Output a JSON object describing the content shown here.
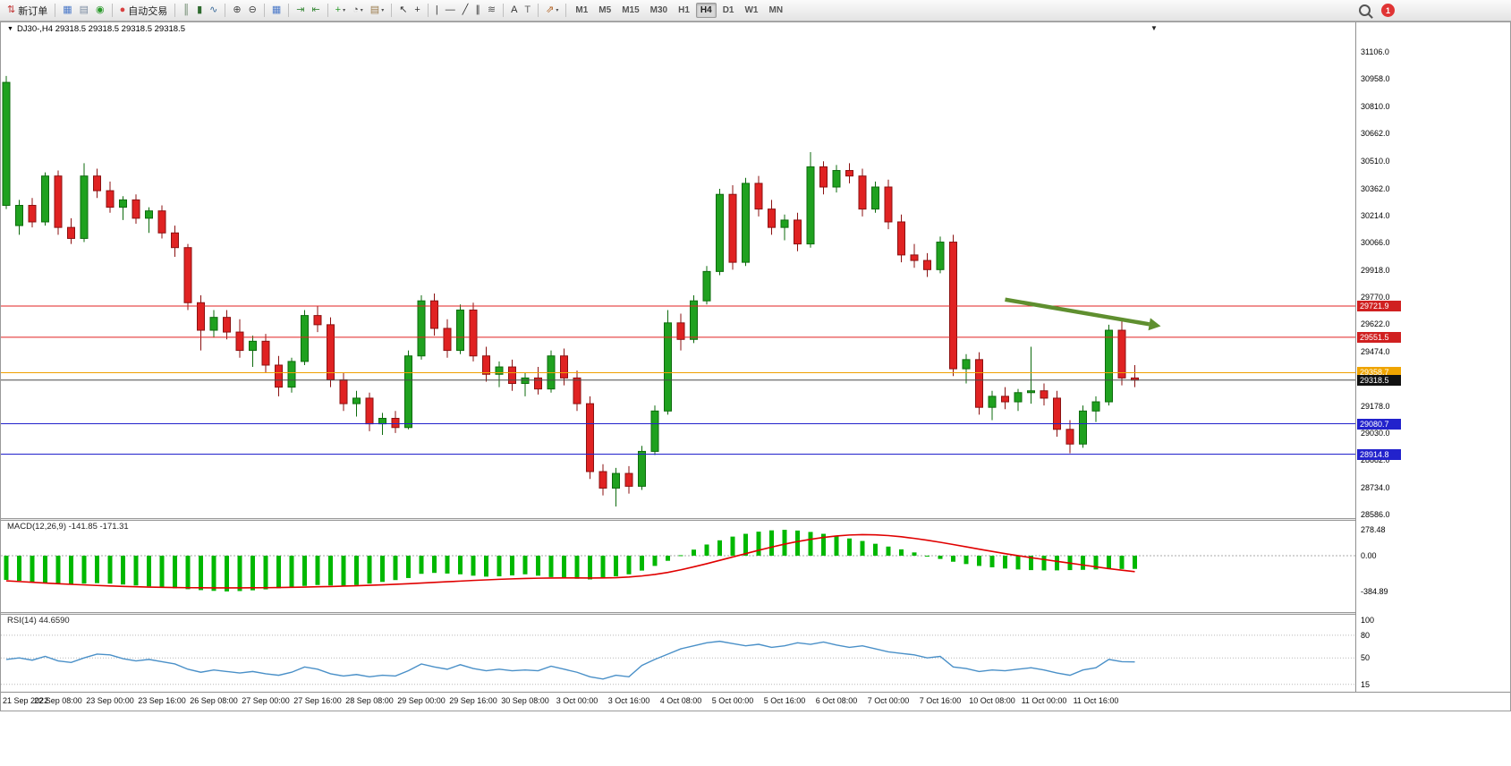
{
  "toolbar": {
    "caret_glyph": "▾",
    "groups": [
      {
        "items": [
          {
            "name": "new-order-button",
            "glyph": "⇅",
            "color": "#c03030",
            "label": "新订单"
          }
        ]
      },
      {
        "items": [
          {
            "name": "new-chart-button",
            "glyph": "▦",
            "color": "#4a78c8"
          },
          {
            "name": "profiles-button",
            "glyph": "▤",
            "color": "#7a8aa0"
          },
          {
            "name": "refresh-button",
            "glyph": "◉",
            "color": "#2a9a2a"
          }
        ]
      },
      {
        "items": [
          {
            "name": "autotrading-button",
            "glyph": "●",
            "color": "#d84040",
            "label": "自动交易"
          }
        ]
      },
      {
        "items": [
          {
            "name": "bar-chart-button",
            "glyph": "║",
            "color": "#5a7a5a"
          },
          {
            "name": "candlestick-chart-button",
            "glyph": "▮",
            "color": "#2f6b2f"
          },
          {
            "name": "line-chart-button",
            "glyph": "∿",
            "color": "#3a6a9a"
          }
        ]
      },
      {
        "items": [
          {
            "name": "zoom-in-button",
            "glyph": "⊕",
            "color": "#444444"
          },
          {
            "name": "zoom-out-button",
            "glyph": "⊖",
            "color": "#444444"
          }
        ]
      },
      {
        "items": [
          {
            "name": "tile-windows-button",
            "glyph": "▦",
            "color": "#4a78c8"
          }
        ]
      },
      {
        "items": [
          {
            "name": "auto-scroll-button",
            "glyph": "⇥",
            "color": "#3a8a3a"
          },
          {
            "name": "chart-shift-button",
            "glyph": "⇤",
            "color": "#3a8a3a"
          }
        ]
      },
      {
        "items": [
          {
            "name": "indicators-button",
            "glyph": "+",
            "color": "#2a9a2a",
            "caret": true
          },
          {
            "name": "periods-button",
            "glyph": "◔",
            "color": "#555555",
            "caret": true
          },
          {
            "name": "templates-button",
            "glyph": "▤",
            "color": "#9a7a4a",
            "caret": true
          }
        ]
      },
      {
        "items": [
          {
            "name": "cursor-button",
            "glyph": "↖",
            "color": "#333333"
          },
          {
            "name": "crosshair-button",
            "glyph": "+",
            "color": "#333333"
          }
        ]
      },
      {
        "items": [
          {
            "name": "vertical-line-button",
            "glyph": "|",
            "color": "#333333"
          },
          {
            "name": "horizontal-line-button",
            "glyph": "—",
            "color": "#333333"
          },
          {
            "name": "trendline-button",
            "glyph": "╱",
            "color": "#333333"
          },
          {
            "name": "channel-button",
            "glyph": "∥",
            "color": "#333333"
          },
          {
            "name": "fibonacci-button",
            "glyph": "≋",
            "color": "#555555"
          }
        ]
      },
      {
        "items": [
          {
            "name": "text-button",
            "glyph": "A",
            "color": "#333333"
          },
          {
            "name": "text-label-button",
            "glyph": "T",
            "color": "#666666"
          }
        ]
      },
      {
        "items": [
          {
            "name": "arrows-button",
            "glyph": "⇗",
            "color": "#b06020",
            "caret": true
          }
        ]
      }
    ]
  },
  "timeframes": {
    "items": [
      "M1",
      "M5",
      "M15",
      "M30",
      "H1",
      "H4",
      "D1",
      "W1",
      "MN"
    ],
    "active": "H4"
  },
  "window_controls": {
    "notification_count": "1",
    "chart_menu_caret": "▼"
  },
  "symbol_bar": {
    "caret_glyph": "▼",
    "text": "DJ30-,H4  29318.5 29318.5 29318.5 29318.5"
  },
  "chart_data": {
    "type": "candlestick",
    "symbol": "DJ30-",
    "period": "H4",
    "colors": {
      "bull": "#1fa11f",
      "bull_border": "#0d6b0d",
      "bear": "#e02222",
      "bear_border": "#8b1111"
    },
    "y_axis": {
      "max": 31106,
      "min": 28586,
      "ticks": [
        "31106.0",
        "30958.0",
        "30810.0",
        "30662.0",
        "30510.0",
        "30362.0",
        "30214.0",
        "30066.0",
        "29918.0",
        "29770.0",
        "29622.0",
        "29474.0",
        "29178.0",
        "29030.0",
        "28882.0",
        "28734.0",
        "28586.0"
      ]
    },
    "x_axis": {
      "labels": [
        "21 Sep 2022",
        "22 Sep 08:00",
        "23 Sep 00:00",
        "23 Sep 16:00",
        "26 Sep 08:00",
        "27 Sep 00:00",
        "27 Sep 16:00",
        "28 Sep 08:00",
        "29 Sep 00:00",
        "29 Sep 16:00",
        "30 Sep 08:00",
        "3 Oct 00:00",
        "3 Oct 16:00",
        "4 Oct 08:00",
        "5 Oct 00:00",
        "5 Oct 16:00",
        "6 Oct 08:00",
        "7 Oct 00:00",
        "7 Oct 16:00",
        "10 Oct 08:00",
        "11 Oct 00:00",
        "11 Oct 16:00"
      ]
    },
    "hlines": [
      {
        "price": 29721.9,
        "color": "#e02020",
        "tag": "29721.9",
        "tag_bg": "#d02020"
      },
      {
        "price": 29551.5,
        "color": "#e02020",
        "tag": "29551.5",
        "tag_bg": "#d02020"
      },
      {
        "price": 29358.7,
        "color": "#f0a000",
        "tag": "29358.7",
        "tag_bg": "#efa400"
      },
      {
        "price": 29318.5,
        "color": "#4a4a4a",
        "tag": "29318.5",
        "tag_bg": "#111111"
      },
      {
        "price": 29080.7,
        "color": "#2222cc",
        "tag": "29080.7",
        "tag_bg": "#2222cc"
      },
      {
        "price": 28914.8,
        "color": "#2222cc",
        "tag": "28914.8",
        "tag_bg": "#2222cc"
      }
    ],
    "arrow": {
      "from_bar": 77,
      "from_price": 29757,
      "to_bar": 89,
      "to_price": 29612,
      "color": "#5f8f2f"
    },
    "ohlc": [
      [
        30270,
        30975,
        30250,
        30940
      ],
      [
        30160,
        30300,
        30110,
        30270
      ],
      [
        30270,
        30310,
        30150,
        30180
      ],
      [
        30180,
        30450,
        30160,
        30430
      ],
      [
        30430,
        30460,
        30110,
        30150
      ],
      [
        30150,
        30200,
        30060,
        30090
      ],
      [
        30090,
        30500,
        30070,
        30430
      ],
      [
        30430,
        30470,
        30310,
        30350
      ],
      [
        30350,
        30400,
        30230,
        30260
      ],
      [
        30260,
        30320,
        30190,
        30300
      ],
      [
        30300,
        30330,
        30170,
        30200
      ],
      [
        30200,
        30260,
        30120,
        30240
      ],
      [
        30240,
        30270,
        30090,
        30120
      ],
      [
        30120,
        30160,
        29990,
        30040
      ],
      [
        30040,
        30060,
        29700,
        29740
      ],
      [
        29740,
        29780,
        29480,
        29590
      ],
      [
        29590,
        29700,
        29550,
        29660
      ],
      [
        29660,
        29700,
        29540,
        29580
      ],
      [
        29580,
        29650,
        29440,
        29480
      ],
      [
        29480,
        29560,
        29390,
        29530
      ],
      [
        29530,
        29570,
        29360,
        29400
      ],
      [
        29400,
        29450,
        29230,
        29280
      ],
      [
        29280,
        29440,
        29250,
        29420
      ],
      [
        29420,
        29700,
        29400,
        29670
      ],
      [
        29670,
        29720,
        29580,
        29620
      ],
      [
        29620,
        29660,
        29280,
        29320
      ],
      [
        29320,
        29360,
        29150,
        29190
      ],
      [
        29190,
        29260,
        29120,
        29220
      ],
      [
        29220,
        29250,
        29040,
        29080
      ],
      [
        29080,
        29140,
        29020,
        29110
      ],
      [
        29110,
        29150,
        29030,
        29060
      ],
      [
        29060,
        29480,
        29050,
        29450
      ],
      [
        29450,
        29780,
        29430,
        29750
      ],
      [
        29750,
        29790,
        29560,
        29600
      ],
      [
        29600,
        29650,
        29440,
        29480
      ],
      [
        29480,
        29730,
        29460,
        29700
      ],
      [
        29700,
        29740,
        29420,
        29450
      ],
      [
        29450,
        29500,
        29310,
        29350
      ],
      [
        29350,
        29420,
        29280,
        29390
      ],
      [
        29390,
        29430,
        29260,
        29300
      ],
      [
        29300,
        29360,
        29230,
        29330
      ],
      [
        29330,
        29390,
        29240,
        29270
      ],
      [
        29270,
        29480,
        29250,
        29450
      ],
      [
        29450,
        29490,
        29290,
        29330
      ],
      [
        29330,
        29370,
        29150,
        29190
      ],
      [
        29190,
        29230,
        28780,
        28820
      ],
      [
        28820,
        28860,
        28690,
        28730
      ],
      [
        28730,
        28840,
        28630,
        28810
      ],
      [
        28810,
        28850,
        28700,
        28740
      ],
      [
        28740,
        28960,
        28720,
        28930
      ],
      [
        28930,
        29180,
        28910,
        29150
      ],
      [
        29150,
        29700,
        29130,
        29630
      ],
      [
        29630,
        29680,
        29480,
        29540
      ],
      [
        29540,
        29780,
        29520,
        29750
      ],
      [
        29750,
        29940,
        29730,
        29910
      ],
      [
        29910,
        30360,
        29890,
        30330
      ],
      [
        30330,
        30380,
        29920,
        29960
      ],
      [
        29960,
        30420,
        29940,
        30390
      ],
      [
        30390,
        30430,
        30210,
        30250
      ],
      [
        30250,
        30300,
        30110,
        30150
      ],
      [
        30150,
        30220,
        30080,
        30190
      ],
      [
        30190,
        30230,
        30020,
        30060
      ],
      [
        30060,
        30560,
        30040,
        30480
      ],
      [
        30480,
        30510,
        30330,
        30370
      ],
      [
        30370,
        30490,
        30340,
        30460
      ],
      [
        30460,
        30500,
        30390,
        30430
      ],
      [
        30430,
        30470,
        30210,
        30250
      ],
      [
        30250,
        30400,
        30230,
        30370
      ],
      [
        30370,
        30410,
        30140,
        30180
      ],
      [
        30180,
        30220,
        29960,
        30000
      ],
      [
        30000,
        30060,
        29930,
        29970
      ],
      [
        29970,
        30010,
        29880,
        29920
      ],
      [
        29920,
        30100,
        29900,
        30070
      ],
      [
        30070,
        30110,
        29340,
        29380
      ],
      [
        29380,
        29460,
        29300,
        29430
      ],
      [
        29430,
        29470,
        29130,
        29170
      ],
      [
        29170,
        29260,
        29100,
        29230
      ],
      [
        29230,
        29280,
        29160,
        29200
      ],
      [
        29200,
        29270,
        29150,
        29250
      ],
      [
        29250,
        29500,
        29190,
        29260
      ],
      [
        29260,
        29300,
        29180,
        29220
      ],
      [
        29220,
        29260,
        29010,
        29050
      ],
      [
        29050,
        29100,
        28920,
        28970
      ],
      [
        28970,
        29180,
        28950,
        29150
      ],
      [
        29150,
        29230,
        29090,
        29200
      ],
      [
        29200,
        29620,
        29180,
        29590
      ],
      [
        29590,
        29640,
        29290,
        29330
      ],
      [
        29330,
        29400,
        29280,
        29318.5
      ]
    ],
    "macd": {
      "label": "MACD(12,26,9) -141.85 -171.31",
      "scale_max": 278.48,
      "scale_min": -384.89,
      "ticks": [
        "278.48",
        "0.00",
        "-384.89"
      ],
      "histogram_color": "#00b800",
      "signal_color": "#e00000",
      "histogram": [
        -260,
        -270,
        -280,
        -290,
        -300,
        -310,
        -300,
        -295,
        -300,
        -310,
        -320,
        -330,
        -340,
        -350,
        -360,
        -370,
        -378,
        -384,
        -380,
        -372,
        -362,
        -350,
        -338,
        -325,
        -315,
        -320,
        -325,
        -315,
        -300,
        -282,
        -262,
        -240,
        -195,
        -185,
        -192,
        -200,
        -215,
        -225,
        -222,
        -212,
        -200,
        -215,
        -230,
        -240,
        -248,
        -255,
        -240,
        -222,
        -200,
        -160,
        -110,
        -55,
        5,
        65,
        120,
        165,
        205,
        235,
        258,
        272,
        278,
        270,
        255,
        235,
        210,
        185,
        158,
        128,
        98,
        68,
        35,
        0,
        -35,
        -65,
        -90,
        -110,
        -125,
        -138,
        -148,
        -155,
        -158,
        -158,
        -155,
        -152,
        -148,
        -145,
        -143,
        -141.85
      ],
      "signal": [
        -270,
        -278,
        -286,
        -294,
        -301,
        -308,
        -314,
        -320,
        -325,
        -330,
        -334,
        -337,
        -340,
        -342,
        -344,
        -345,
        -346,
        -346,
        -346,
        -345,
        -344,
        -342,
        -340,
        -337,
        -334,
        -331,
        -327,
        -323,
        -318,
        -313,
        -307,
        -301,
        -294,
        -287,
        -280,
        -273,
        -266,
        -260,
        -254,
        -249,
        -245,
        -242,
        -240,
        -239,
        -239,
        -240,
        -239,
        -236,
        -229,
        -218,
        -202,
        -180,
        -152,
        -120,
        -86,
        -50,
        -14,
        22,
        58,
        92,
        124,
        152,
        176,
        196,
        212,
        222,
        226,
        224,
        216,
        203,
        186,
        166,
        144,
        120,
        95,
        70,
        46,
        22,
        0,
        -21,
        -41,
        -61,
        -80,
        -100,
        -120,
        -139,
        -156,
        -171.31
      ]
    },
    "rsi": {
      "label": "RSI(14) 44.6590",
      "ticks": [
        "100",
        "80",
        "50",
        "15"
      ],
      "levels": [
        80,
        50,
        15
      ],
      "line_color": "#4a90c8",
      "values": [
        48,
        50,
        47,
        52,
        46,
        44,
        50,
        55,
        54,
        49,
        46,
        48,
        45,
        42,
        35,
        31,
        34,
        32,
        30,
        32,
        29,
        27,
        31,
        38,
        35,
        29,
        26,
        28,
        25,
        27,
        26,
        33,
        42,
        38,
        35,
        41,
        36,
        33,
        35,
        33,
        34,
        33,
        39,
        35,
        31,
        25,
        22,
        27,
        25,
        40,
        48,
        55,
        62,
        66,
        70,
        72,
        69,
        66,
        68,
        64,
        66,
        70,
        68,
        71,
        67,
        64,
        66,
        62,
        58,
        56,
        54,
        50,
        52,
        38,
        36,
        32,
        34,
        33,
        35,
        37,
        34,
        30,
        27,
        34,
        37,
        48,
        45,
        44.659
      ]
    }
  }
}
